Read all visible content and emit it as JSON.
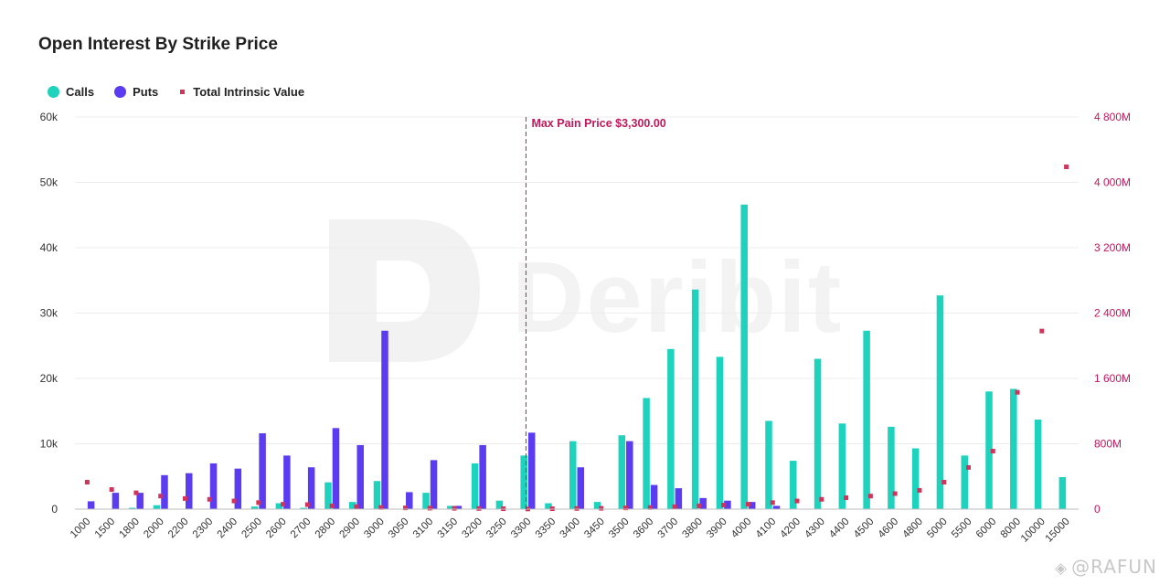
{
  "chart_data": {
    "type": "bar",
    "title": "Open Interest By Strike Price",
    "categories": [
      "1000",
      "1500",
      "1800",
      "2000",
      "2200",
      "2300",
      "2400",
      "2500",
      "2600",
      "2700",
      "2800",
      "2900",
      "3000",
      "3050",
      "3100",
      "3150",
      "3200",
      "3250",
      "3300",
      "3350",
      "3400",
      "3450",
      "3500",
      "3600",
      "3700",
      "3800",
      "3900",
      "4000",
      "4100",
      "4200",
      "4300",
      "4400",
      "4500",
      "4600",
      "4800",
      "5000",
      "5500",
      "6000",
      "8000",
      "10000",
      "15000"
    ],
    "series": [
      {
        "name": "Calls",
        "type": "bar",
        "axis": "left",
        "color": "#1dd3bd",
        "values": [
          0,
          0,
          200,
          600,
          0,
          0,
          0,
          400,
          900,
          200,
          4100,
          1100,
          4300,
          0,
          2500,
          500,
          7000,
          1300,
          8200,
          900,
          10400,
          1100,
          11300,
          17000,
          24500,
          33600,
          23300,
          46600,
          13500,
          7400,
          23000,
          13100,
          27300,
          12600,
          9300,
          32700,
          8200,
          18000,
          18400,
          13700,
          4900
        ]
      },
      {
        "name": "Puts",
        "type": "bar",
        "axis": "left",
        "color": "#5b3cf0",
        "values": [
          1200,
          2500,
          2500,
          5200,
          5500,
          7000,
          6200,
          11600,
          8200,
          6400,
          12400,
          9800,
          27300,
          2600,
          7500,
          500,
          9800,
          0,
          11700,
          0,
          6400,
          0,
          10400,
          3700,
          3200,
          1700,
          1300,
          1100,
          500,
          0,
          0,
          0,
          0,
          0,
          0,
          0,
          0,
          0,
          0,
          0,
          0
        ]
      },
      {
        "name": "Total Intrinsic Value",
        "type": "scatter",
        "axis": "right",
        "color": "#d1345b",
        "values": [
          330,
          240,
          200,
          160,
          130,
          120,
          100,
          80,
          60,
          55,
          40,
          30,
          20,
          15,
          12,
          10,
          8,
          5,
          2,
          5,
          8,
          10,
          15,
          20,
          30,
          40,
          50,
          60,
          80,
          100,
          120,
          140,
          160,
          190,
          230,
          330,
          510,
          710,
          1430,
          2180,
          4190
        ]
      }
    ],
    "xlabel": "",
    "ylabel": "",
    "ylim": [
      0,
      60000
    ],
    "y_ticks": [
      "0",
      "10k",
      "20k",
      "30k",
      "40k",
      "50k",
      "60k"
    ],
    "y2lim": [
      0,
      4800
    ],
    "y2_ticks": [
      "0",
      "800M",
      "1 600M",
      "2 400M",
      "3 200M",
      "4 000M",
      "4 800M"
    ],
    "annotation": {
      "label": "Max Pain Price $3,300.00",
      "category": "3300"
    },
    "grid": true,
    "legend_placement": "top-left"
  },
  "legend": {
    "calls_label": "Calls",
    "puts_label": "Puts",
    "tiv_label": "Total Intrinsic Value"
  },
  "watermarks": {
    "logo_text": "Deribit",
    "user_tag": "@RAFUN"
  },
  "colors": {
    "calls": "#1dd3bd",
    "puts": "#5b3cf0",
    "intrinsic": "#d1345b",
    "right_axis": "#c2185b",
    "grid": "#ececec"
  }
}
